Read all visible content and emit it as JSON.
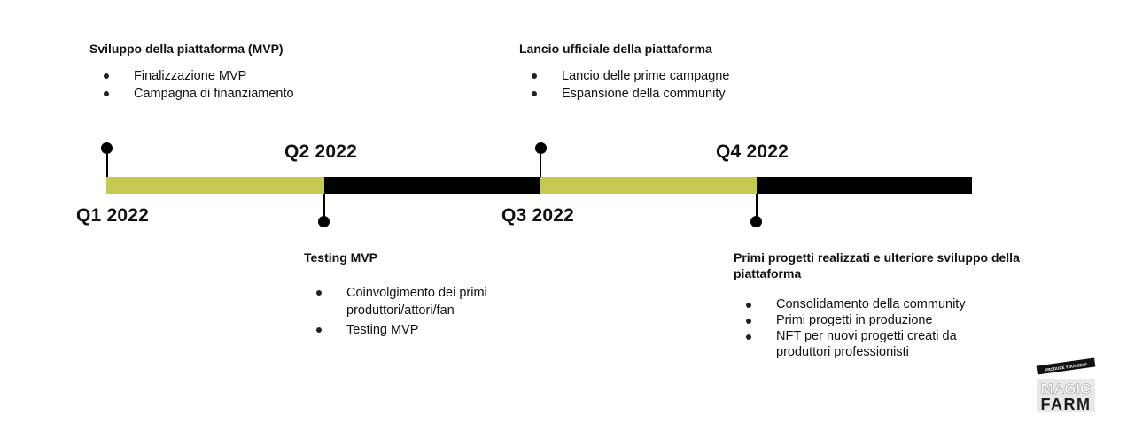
{
  "colors": {
    "accent": "#c6c94f",
    "bar_dark": "#000000",
    "text": "#111111"
  },
  "quarters": [
    {
      "label": "Q1 2022"
    },
    {
      "label": "Q2 2022"
    },
    {
      "label": "Q3 2022"
    },
    {
      "label": "Q4 2022"
    }
  ],
  "milestones": [
    {
      "title": "Sviluppo della piattaforma (MVP)",
      "items": [
        "Finalizzazione MVP",
        "Campagna di finanziamento"
      ]
    },
    {
      "title": "Testing MVP",
      "items": [
        "Coinvolgimento dei primi produttori/attori/fan",
        "Testing MVP"
      ]
    },
    {
      "title": "Lancio ufficiale della piattaforma",
      "items": [
        "Lancio delle prime campagne",
        "Espansione della community"
      ]
    },
    {
      "title": "Primi progetti realizzati e ulteriore sviluppo della piattaforma",
      "items": [
        "Consolidamento della community",
        "Primi progetti in produzione",
        "NFT per nuovi progetti creati da produttori professionisti"
      ]
    }
  ],
  "logo": {
    "tagline": "PRODUCE YOURSELF",
    "line1": "MAGIC",
    "line2": "FARM"
  }
}
